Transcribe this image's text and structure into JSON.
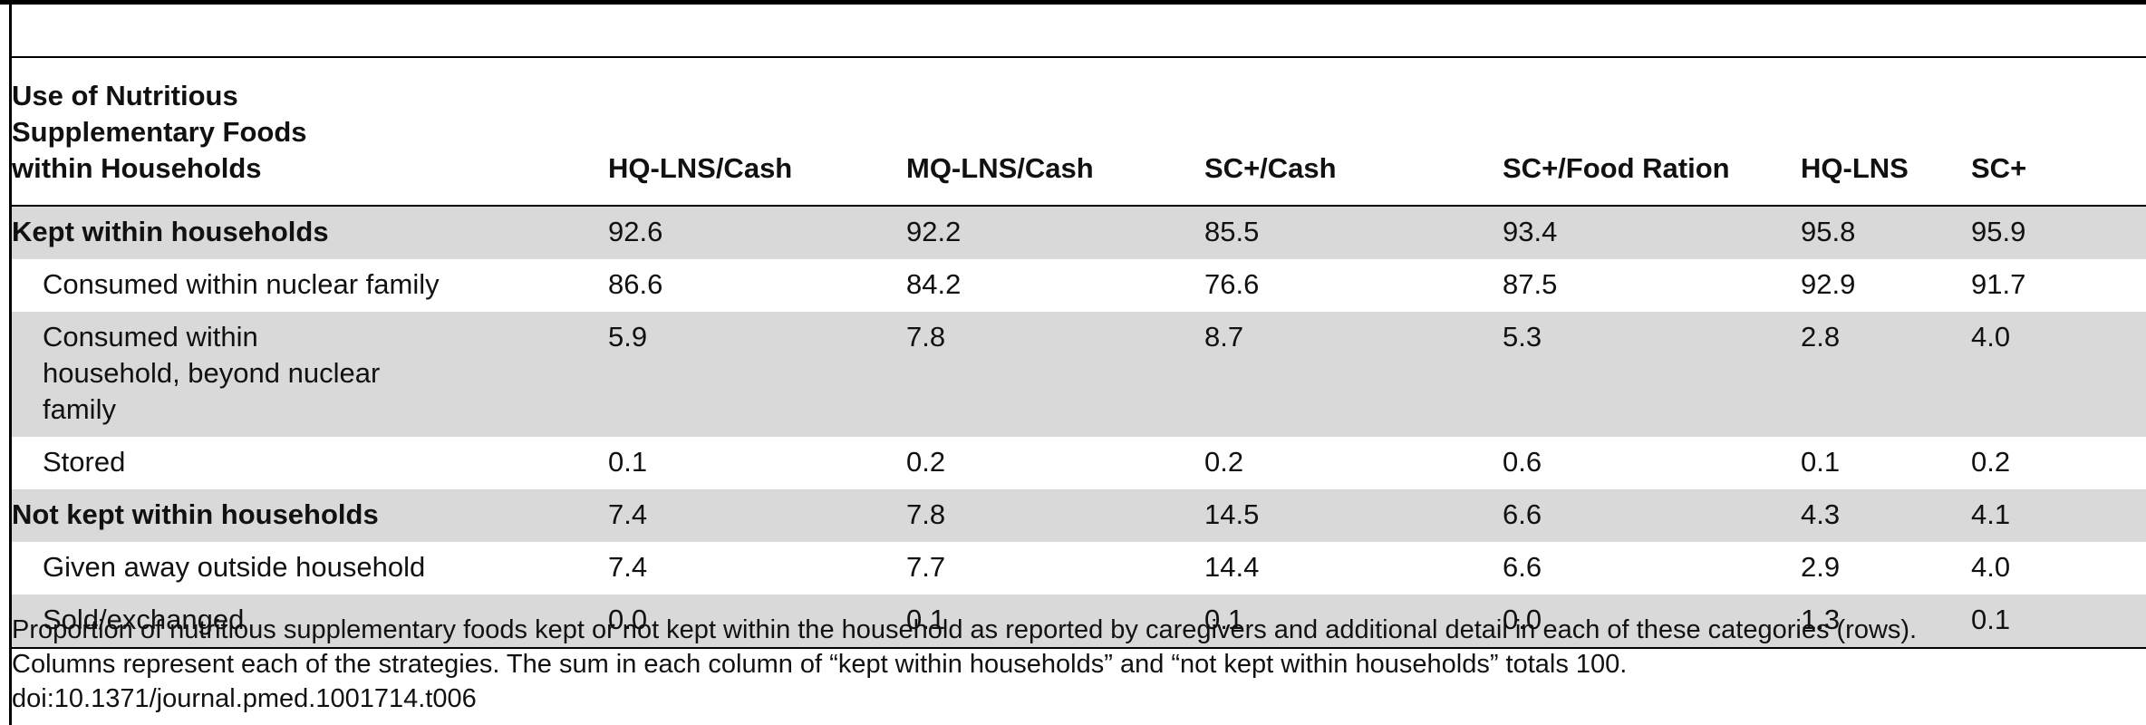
{
  "table": {
    "columns": [
      "Use of Nutritious Supplementary Foods within Households",
      "HQ-LNS/Cash",
      "MQ-LNS/Cash",
      "SC+/Cash",
      "SC+/Food Ration",
      "HQ-LNS",
      "SC+"
    ],
    "rows": [
      {
        "label": "Kept within households",
        "values": [
          "92.6",
          "92.2",
          "85.5",
          "93.4",
          "95.8",
          "95.9"
        ]
      },
      {
        "label": "Consumed within nuclear family",
        "values": [
          "86.6",
          "84.2",
          "76.6",
          "87.5",
          "92.9",
          "91.7"
        ]
      },
      {
        "label": "Consumed within household, beyond nuclear family",
        "values": [
          "5.9",
          "7.8",
          "8.7",
          "5.3",
          "2.8",
          "4.0"
        ]
      },
      {
        "label": "Stored",
        "values": [
          "0.1",
          "0.2",
          "0.2",
          "0.6",
          "0.1",
          "0.2"
        ]
      },
      {
        "label": "Not kept within households",
        "values": [
          "7.4",
          "7.8",
          "14.5",
          "6.6",
          "4.3",
          "4.1"
        ]
      },
      {
        "label": "Given away outside household",
        "values": [
          "7.4",
          "7.7",
          "14.4",
          "6.6",
          "2.9",
          "4.0"
        ]
      },
      {
        "label": "Sold/exchanged",
        "values": [
          "0.0",
          "0.1",
          "0.1",
          "0.0",
          "1.3",
          "0.1"
        ]
      }
    ]
  },
  "footnote": {
    "line1": "Proportion of nutritious supplementary foods kept or not kept within the household as reported by caregivers and additional detail in each of these categories (rows).",
    "line2": "Columns represent each of the strategies. The sum in each column of “kept within households” and “not kept within households” totals 100.",
    "doi": "doi:10.1371/journal.pmed.1001714.t006"
  }
}
